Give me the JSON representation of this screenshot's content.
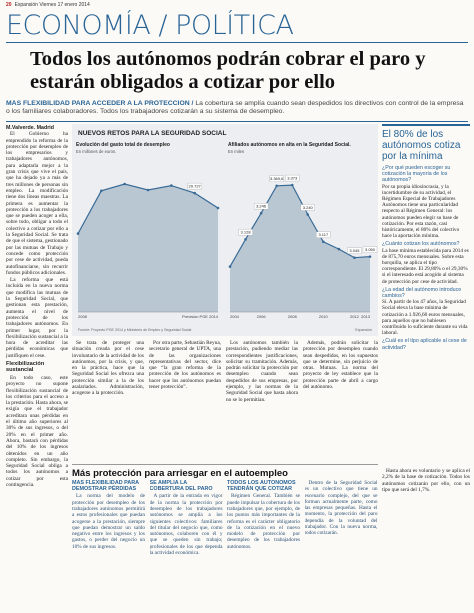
{
  "header": {
    "page": "20",
    "paper": "Expansión",
    "date": "Viernes 17 enero 2014"
  },
  "section": "ECONOMÍA / POLÍTICA",
  "headline": "Todos los autónomos podrán cobrar el paro y estarán obligados a cotizar por ello",
  "subhead": {
    "lead": "MÁS FLEXIBILIDAD PARA ACCEDER A LA PROTECCIÓN /",
    "text": "La cobertura se amplía cuando sean despedidos los directivos con control de la empresa o los familiares colaboradores. Todos los trabajadores cotizarán a su sistema de desempleo."
  },
  "article": {
    "byline": "M.Valverde. Madrid",
    "paragraphs": [
      "El Gobierno ha emprendido la reforma de la protección por desempleo de los empresarios y trabajadores autónomos, para adaptarla mejor a la gran crisis que vive el país, que ha dejado ya a más de tres millones de personas sin empleo. La modificación tiene dos líneas maestras. La primera es aumentar la protección a los trabajadores que se pueden acoger a ella, sobre todo, obligar a todo el colectivo a cotizar por ello a la Seguridad Social. Se trata de que el sistema, gestionado por las mutuas de Trabajo y concede como protección por cese de actividad, pueda autofinanciarse, sin recurrir fondos públicos adicionales.",
      "La reforma que está incluida en la nueva norma que modifica las mutuas de la Seguridad Social, que gestionan esta prestación, aumenta el nivel de protección de los trabajadores autónomos. En primer lugar, por la flexibilización sustancial a la hora de acreditar las pérdidas económicas que justifiquen el cese."
    ],
    "subheading": "Flexibilización sustancial",
    "paragraphs2": [
      "En todo caso, este proyecto no supone flexibilización sustancial de los criterios para el acceso a la prestación. Hasta ahora, se exigía que el trabajador acreditara unas pérdidas en el último año superiores al 30% de sus ingresos, o del 20% en el primer año. Ahora, bastará con pérdidas del 10% de los ingresos obtenidos en un año completo. Sin embargo, la Seguridad Social obliga a todos los autónomos a cotizar por esta contingencia."
    ]
  },
  "graphic": {
    "title": "NUEVOS RETOS PARA LA SEGURIDAD SOCIAL",
    "source": "Fuente: Proyecto PGE 2014 y Ministerio de Empleo y Seguridad Social",
    "credit": "Expansión",
    "charts": [
      {
        "type": "area",
        "title": "Evolución del gasto total de desempleo",
        "subtitle": "En millones de euros.",
        "categories": [
          "2008",
          null,
          null,
          null,
          null,
          null,
          "Previsión PGE 2014"
        ],
        "values": [
          19600,
          30300,
          32000,
          30500,
          31600,
          29727,
          26000
        ],
        "value_labels": [
          null,
          null,
          null,
          null,
          null,
          "29.727",
          null
        ],
        "ylim": [
          0,
          36000
        ],
        "color": "#3a6b96",
        "fill": "#b9c7d3"
      },
      {
        "type": "area",
        "title": "Afiliados autónomos en alta en la Seguridad Social.",
        "subtitle": "En miles",
        "categories": [
          "2004",
          null,
          "2006",
          null,
          "2008",
          null,
          "2010",
          null,
          "2012",
          "2013"
        ],
        "values": [
          3005,
          3128,
          3246,
          3369.6,
          3373,
          3240,
          3117,
          3084,
          3045,
          3050
        ],
        "value_labels": [
          null,
          "3.128",
          "3.246",
          "3.369,6",
          "3.373",
          "3.240",
          "3.117",
          null,
          "3.045",
          "3.050"
        ],
        "ylim": [
          2800,
          3450
        ],
        "color": "#3a6b96",
        "fill": "#b9c7d3"
      }
    ]
  },
  "columns": [
    "Se trata de proteger una situación creada por el cese involuntario de la actividad de los autónomos, por la crisis, y que, en la práctica, hace que la Seguridad Social les ofrezca una protección similar a la de los asalariados. Administración, acogerse a la protección.",
    "Por otra parte, Sebastián Reyna, secretario general de UPTA, una de las organizaciones representativas del sector, dice que “la gran reforma de la protección de los autónomos es hacer que los autónomos puedan tener protección”.",
    "Los autónomos también la prestación, pudiendo mediar las correspondientes justificaciones, solicitar su tramitación. Además, podrán solicitar la protección por desempleo cuando sean despedidos de sus empresas, por ejemplo, y las normas de la Seguridad Social que hasta ahora no se lo permitían.",
    "Además, podrán solicitar la protección por desempleo cuando sean despedidos, en los supuestos que se determine, sin perjuicio de otras. Mutuas. La norma del proyecto de ley establece que la protección parte de abril a cargo del autónomo."
  ],
  "sidebar": {
    "title": "El 80% de los autónomos cotiza por la mínima",
    "items": [
      {
        "q": "¿Por qué pueden escoger su cotización la mayoría de los autónomos?",
        "a": "Por su propia idiosincrasia, y la incertidumbre de su actividad, el Régimen Especial de Trabajadores Autónomos tiene una particularidad respecto al Régimen General: los autónomos pueden elegir su base de cotización. Por esta razón, casi históricamente, el 80% del colectivo hace la aportación mínima."
      },
      {
        "q": "¿Cuánto cotizan los autónomos?",
        "a": "La base mínima establecida para 2014 es de 875,70 euros mensuales. Sobre esta horquilla, se aplica el tipo correspondiente. El 29,80% o el 29,30% si el interesado está acogido al sistema de protección por cese de actividad."
      },
      {
        "q": "¿La edad del autónomo introduce cambios?",
        "a": "Sí. A partir de los 47 años, la Seguridad Social eleva la base mínima de cotización a 1.926,60 euros mensuales, para aquellos que no hubiesen contribuido lo suficiente durante su vida laboral."
      },
      {
        "q": "¿Cuál es el tipo aplicable al cese de actividad?",
        "a": "Hasta ahora es voluntario y se aplica el 2,2% de la base de cotización. Todos los autónomos cotizarán por ello, con un tipo que será del 1,7%."
      }
    ]
  },
  "box": {
    "title": "Más protección para arriesgar en el autoempleo",
    "columns": [
      {
        "heading": "MÁS FLEXIBILIDAD PARA DEMOSTRAR PÉRDIDAS",
        "text": "La norma del modelo de protección por desempleo de los trabajadores autónomos permitirá a estos profesionales que puedan acogerse a la prestación, siempre que puedan demostrar un saldo negativo entre los ingresos y los gastos, o perder del negocio un 10% de sus ingresos."
      },
      {
        "heading": "SE AMPLÍA LA COBERTURA DEL PARO",
        "text": "A partir de la entrada en vigor de la norma la protección por desempleo de los trabajadores autónomos se amplía a los siguientes colectivos: familiares del titular del negocio que, como autónomos, colaboren con él y que se queden sin trabajo; profesionales de los que dependa la actividad económica."
      },
      {
        "heading": "TODOS LOS AUTÓNOMOS TENDRÁN QUE COTIZAR",
        "text": "Régimen General. También se puede impulsar la cobertura de los trabajadores que, por ejemplo, de los puntos más importantes de la reforma es el carácter obligatorio de la cotización en el nuevo modelo de protección por desempleo de los trabajadores autónomos."
      },
      {
        "heading": null,
        "text": "Dentro de la Seguridad Social es un colectivo que tiene un escenario complejo, del que se forman actualmente parte, como las empresas pequeñas. Hasta el momento, la protección del paro dependía de la voluntad del trabajador. Con la nueva norma, todos cotizarán."
      }
    ]
  }
}
